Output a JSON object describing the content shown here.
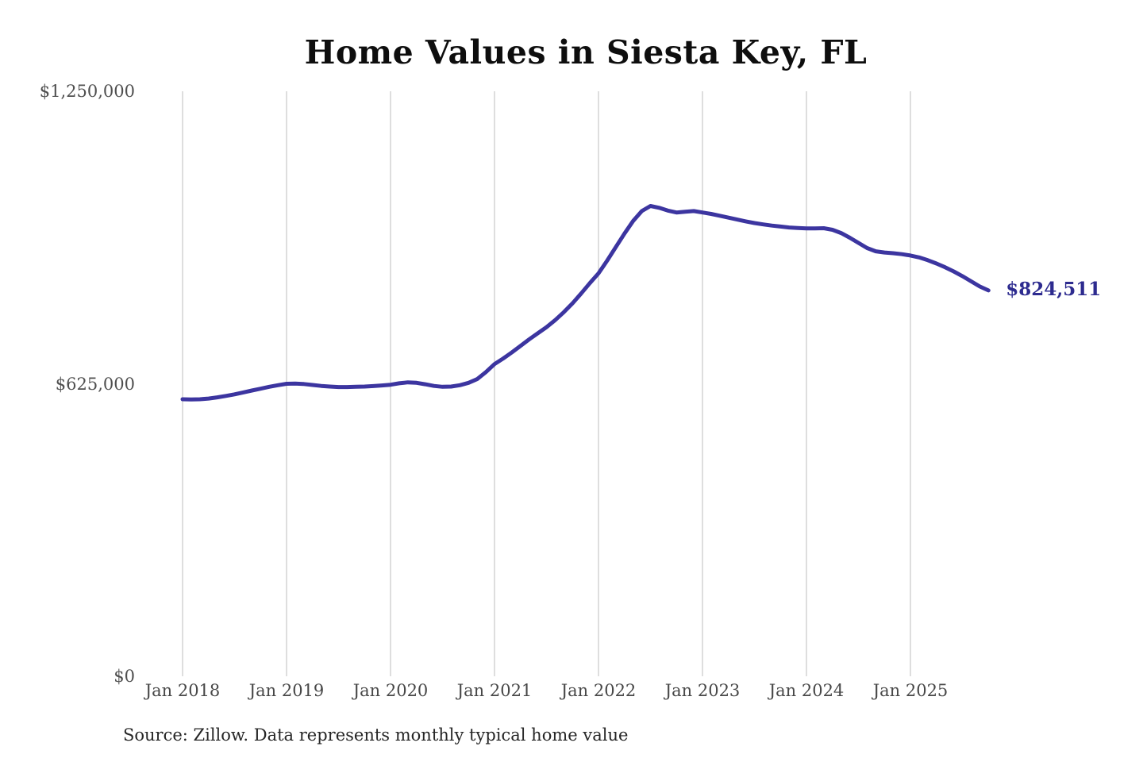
{
  "header": {
    "title": "Home Values in Siesta Key, FL"
  },
  "footer": {
    "source_note": "Source: Zillow. Data represents monthly typical home value"
  },
  "annotation": {
    "end_value_label": "$824,511"
  },
  "colors": {
    "line": "#3c35a0",
    "end_label": "#2d2b8f",
    "grid": "#c9c9c9",
    "title_text": "#0e0e0e",
    "axis_text": "#4c4c4c",
    "source_text": "#262626",
    "background": "#ffffff"
  },
  "chart_data": {
    "type": "line",
    "title": "Home Values in Siesta Key, FL",
    "xlabel": "",
    "ylabel": "",
    "ylim": [
      0,
      1250000
    ],
    "grid": "vertical-only",
    "legend": "none",
    "x_cadence": "monthly",
    "x_start": "Jan 2018",
    "x_end": "Oct 2025",
    "x_ticks": [
      {
        "label": "Jan 2018",
        "month_index": 0
      },
      {
        "label": "Jan 2019",
        "month_index": 12
      },
      {
        "label": "Jan 2020",
        "month_index": 24
      },
      {
        "label": "Jan 2021",
        "month_index": 36
      },
      {
        "label": "Jan 2022",
        "month_index": 48
      },
      {
        "label": "Jan 2023",
        "month_index": 60
      },
      {
        "label": "Jan 2024",
        "month_index": 72
      },
      {
        "label": "Jan 2025",
        "month_index": 84
      }
    ],
    "y_ticks": [
      {
        "label": "$1,250,000",
        "value": 1250000
      },
      {
        "label": "$625,000",
        "value": 625000
      },
      {
        "label": "$0",
        "value": 0
      }
    ],
    "series": [
      {
        "name": "Monthly typical home value",
        "values": [
          592000,
          591500,
          592000,
          593500,
          596000,
          599000,
          602500,
          606500,
          610500,
          614500,
          618500,
          622000,
          625000,
          625500,
          624500,
          622500,
          620500,
          619000,
          618000,
          618000,
          618500,
          619000,
          620000,
          621500,
          623000,
          626000,
          628000,
          627000,
          624000,
          620500,
          618500,
          619000,
          622000,
          627000,
          635000,
          650000,
          667000,
          679000,
          692000,
          706000,
          720000,
          733000,
          746000,
          761000,
          778000,
          797000,
          818000,
          840000,
          861000,
          888000,
          917000,
          946000,
          973000,
          994000,
          1005000,
          1001000,
          995000,
          991000,
          992500,
          994000,
          991000,
          988000,
          984000,
          980000,
          976000,
          972000,
          968500,
          965500,
          963000,
          961000,
          959000,
          958000,
          957000,
          957000,
          957500,
          954000,
          947000,
          937000,
          926000,
          915000,
          908000,
          905500,
          904000,
          902000,
          899000,
          895000,
          889000,
          882000,
          874000,
          865000,
          855000,
          844000,
          833000,
          824511
        ]
      }
    ],
    "end_annotation": "$824,511"
  }
}
